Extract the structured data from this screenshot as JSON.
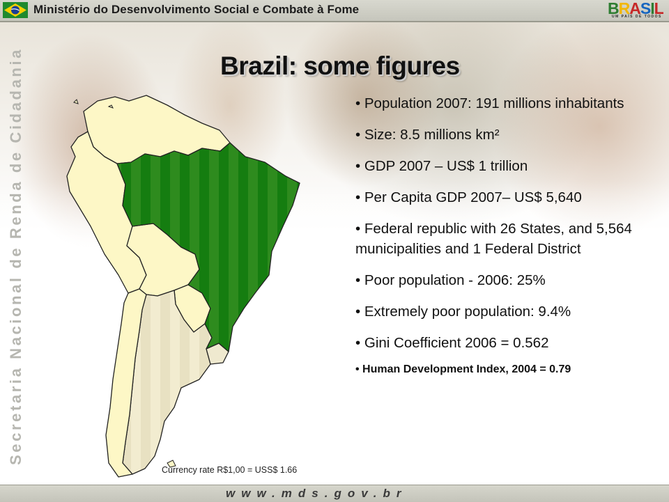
{
  "header": {
    "title": "Ministério do Desenvolvimento Social e Combate à Fome",
    "flag_icon": "brazil-flag-icon",
    "logo": {
      "word": [
        "B",
        "R",
        "A",
        "S",
        "I",
        "L"
      ],
      "tagline": "UM PAÍS DE TODOS"
    }
  },
  "sidebar": {
    "vertical_text": "Secretaria Nacional de Renda de Cidadania"
  },
  "slide": {
    "title": "Brazil: some figures",
    "bullets": [
      "• Population 2007: 191 millions inhabitants",
      "• Size: 8.5 millions km²",
      "• GDP 2007 – US$ 1 trillion",
      "• Per Capita GDP 2007– US$  5,640",
      "• Federal republic with 26 States, and 5,564 municipalities and 1 Federal District",
      "• Poor population - 2006: 25%",
      "• Extremely poor population: 9.4%",
      "• Gini Coefficient 2006 = 0.562",
      "• Human Development Index, 2004 = 0.79"
    ],
    "currency_note": "Currency rate R$1,00 = USS$ 1.66"
  },
  "map": {
    "icon": "south-america-map",
    "colors": {
      "brazil": "#2e8b1e",
      "brazil_dark": "#127a0e",
      "other_countries": "#fdf7c6",
      "southern_cone": "#efe9cf",
      "border": "#222222"
    }
  },
  "footer": {
    "url": "www.mds.gov.br"
  }
}
